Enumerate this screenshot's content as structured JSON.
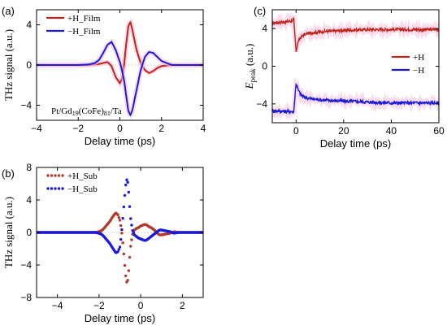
{
  "chart_data": [
    {
      "id": "a",
      "type": "line",
      "panel_label": "(a)",
      "xlabel": "Delay time (ps)",
      "ylabel": "THz signal (a.u.)",
      "xlim": [
        -4,
        4
      ],
      "ylim": [
        -5.5,
        5.5
      ],
      "xticks": [
        -4,
        -2,
        0,
        2,
        4
      ],
      "yticks": [
        -4,
        0,
        4
      ],
      "annotation": "Pt/Gd19(CoFe)81/Ta",
      "annotation_parts": {
        "pre": "Pt/Gd",
        "sub1": "19",
        "mid": "(CoFe)",
        "sub2": "81",
        "post": "/Ta"
      },
      "legend_position": "top-left",
      "series": [
        {
          "name": "+H_Film",
          "color": "#c0241c",
          "x": [
            -4,
            -3,
            -2,
            -1.5,
            -1.2,
            -1.0,
            -0.8,
            -0.6,
            -0.4,
            -0.2,
            0.0,
            0.1,
            0.2,
            0.3,
            0.4,
            0.5,
            0.6,
            0.8,
            1.0,
            1.2,
            1.4,
            1.6,
            1.8,
            2.0,
            2.5,
            3,
            3.5,
            4
          ],
          "y": [
            0,
            0,
            0,
            0,
            0.05,
            0.1,
            0.2,
            0.3,
            -0.1,
            -1.2,
            -1.8,
            -1.4,
            0,
            2.0,
            3.8,
            4.3,
            3.5,
            1.5,
            0.2,
            -0.5,
            -0.8,
            -0.6,
            -0.3,
            -0.1,
            0,
            0,
            0,
            0
          ]
        },
        {
          "name": "−H_Film",
          "color": "#1a1adc",
          "x": [
            -4,
            -3,
            -2,
            -1.5,
            -1.2,
            -1.0,
            -0.8,
            -0.6,
            -0.4,
            -0.2,
            0.0,
            0.1,
            0.2,
            0.3,
            0.4,
            0.5,
            0.6,
            0.8,
            1.0,
            1.2,
            1.4,
            1.6,
            1.8,
            2.0,
            2.5,
            3,
            3.5,
            4
          ],
          "y": [
            0,
            0,
            0,
            0.05,
            0.2,
            0.5,
            1.2,
            2.0,
            2.3,
            1.5,
            0.3,
            -0.5,
            -1.5,
            -3.0,
            -4.5,
            -5.0,
            -4.5,
            -2.5,
            -0.5,
            0.8,
            1.3,
            1.2,
            0.8,
            0.4,
            0,
            0,
            0,
            0
          ]
        }
      ]
    },
    {
      "id": "b",
      "type": "scatter",
      "panel_label": "(b)",
      "xlabel": "Delay time (ps)",
      "ylabel": "THz signal (a.u.)",
      "xlim": [
        -5,
        3
      ],
      "ylim": [
        -8,
        8
      ],
      "xticks": [
        -4,
        -2,
        0,
        2
      ],
      "yticks": [
        -8,
        -4,
        0,
        4,
        8
      ],
      "legend_position": "top-left",
      "series": [
        {
          "name": "+H_Sub",
          "color": "#b3392a",
          "x": [
            -5,
            -4.8,
            -4.6,
            -4.4,
            -4.2,
            -4.0,
            -3.8,
            -3.6,
            -3.4,
            -3.2,
            -3.0,
            -2.8,
            -2.6,
            -2.4,
            -2.2,
            -2.0,
            -1.9,
            -1.8,
            -1.7,
            -1.6,
            -1.5,
            -1.4,
            -1.3,
            -1.2,
            -1.1,
            -1.0,
            -0.95,
            -0.9,
            -0.85,
            -0.8,
            -0.75,
            -0.7,
            -0.65,
            -0.6,
            -0.55,
            -0.5,
            -0.4,
            -0.3,
            -0.2,
            -0.1,
            0.0,
            0.1,
            0.2,
            0.3,
            0.4,
            0.5,
            0.6,
            0.7,
            0.8,
            0.9,
            1.0,
            1.2,
            1.4,
            1.6,
            1.8,
            2.0,
            2.2,
            2.4,
            2.6,
            2.8,
            3.0
          ],
          "y": [
            0,
            0,
            0,
            0,
            0,
            0,
            0,
            0,
            0,
            0,
            0,
            0,
            0,
            0,
            0,
            0.1,
            0.2,
            0.4,
            0.7,
            1.0,
            1.3,
            1.7,
            2.1,
            2.4,
            2.2,
            1.5,
            0.8,
            -0.2,
            -1.5,
            -3.0,
            -4.5,
            -5.8,
            -6.3,
            -5.5,
            -3.8,
            -2.0,
            -0.3,
            0.3,
            0.5,
            0.6,
            0.8,
            0.9,
            1.0,
            0.9,
            0.7,
            0.6,
            0.4,
            0.2,
            -0.1,
            -0.3,
            -0.3,
            -0.2,
            -0.1,
            0.1,
            0,
            0,
            0,
            0,
            0,
            0,
            0
          ]
        },
        {
          "name": "−H_Sub",
          "color": "#1a1adc",
          "x": [
            -5,
            -4.8,
            -4.6,
            -4.4,
            -4.2,
            -4.0,
            -3.8,
            -3.6,
            -3.4,
            -3.2,
            -3.0,
            -2.8,
            -2.6,
            -2.4,
            -2.2,
            -2.0,
            -1.9,
            -1.8,
            -1.7,
            -1.6,
            -1.5,
            -1.4,
            -1.3,
            -1.2,
            -1.1,
            -1.0,
            -0.95,
            -0.9,
            -0.85,
            -0.8,
            -0.75,
            -0.7,
            -0.65,
            -0.6,
            -0.55,
            -0.5,
            -0.4,
            -0.3,
            -0.2,
            -0.1,
            0.0,
            0.1,
            0.2,
            0.3,
            0.4,
            0.5,
            0.6,
            0.7,
            0.8,
            0.9,
            1.0,
            1.2,
            1.4,
            1.6,
            1.8,
            2.0,
            2.2,
            2.4,
            2.6,
            2.8,
            3.0
          ],
          "y": [
            0,
            0,
            0,
            0,
            0,
            0,
            0,
            0,
            0,
            0,
            0,
            0,
            0,
            0,
            0,
            -0.1,
            -0.2,
            -0.4,
            -0.7,
            -1.0,
            -1.3,
            -1.7,
            -2.1,
            -2.5,
            -2.4,
            -1.8,
            -0.8,
            0.5,
            2.0,
            3.5,
            5.0,
            6.3,
            6.6,
            5.8,
            4.0,
            2.0,
            0.3,
            -0.3,
            -0.5,
            -0.7,
            -0.8,
            -0.9,
            -1.0,
            -0.9,
            -0.7,
            -0.5,
            -0.3,
            -0.1,
            0.1,
            0.3,
            0.3,
            0.2,
            0.1,
            -0.1,
            0,
            0,
            0,
            0,
            0,
            0,
            0
          ]
        }
      ]
    },
    {
      "id": "c",
      "type": "line",
      "panel_label": "(c)",
      "xlabel": "Delay time (ps)",
      "ylabel_main": "E",
      "ylabel_sub": "peak",
      "ylabel_unit": " (a.u.)",
      "xlim": [
        -10,
        60
      ],
      "ylim": [
        -6,
        6
      ],
      "xticks": [
        0,
        20,
        40,
        60
      ],
      "yticks": [
        -4,
        0,
        4
      ],
      "legend_position": "right",
      "series": [
        {
          "name": "+H",
          "color": "#c0241c",
          "x": [
            -10,
            -5,
            -2,
            -1,
            0,
            0.5,
            1,
            2,
            3,
            5,
            8,
            12,
            20,
            30,
            40,
            50,
            60
          ],
          "y": [
            4.6,
            4.7,
            4.8,
            5.0,
            1.6,
            2.2,
            2.7,
            3.1,
            3.3,
            3.5,
            3.6,
            3.7,
            3.8,
            3.9,
            3.9,
            3.9,
            3.9
          ],
          "noise": 0.15
        },
        {
          "name": "−H",
          "color": "#1a1adc",
          "x": [
            -10,
            -5,
            -2,
            -1,
            0,
            0.5,
            1,
            2,
            3,
            5,
            8,
            12,
            20,
            30,
            40,
            50,
            60
          ],
          "y": [
            -4.7,
            -4.8,
            -4.8,
            -4.9,
            -1.8,
            -2.2,
            -2.6,
            -3.0,
            -3.2,
            -3.4,
            -3.5,
            -3.6,
            -3.7,
            -3.8,
            -3.9,
            -3.9,
            -3.9
          ],
          "noise": 0.18
        }
      ]
    }
  ]
}
